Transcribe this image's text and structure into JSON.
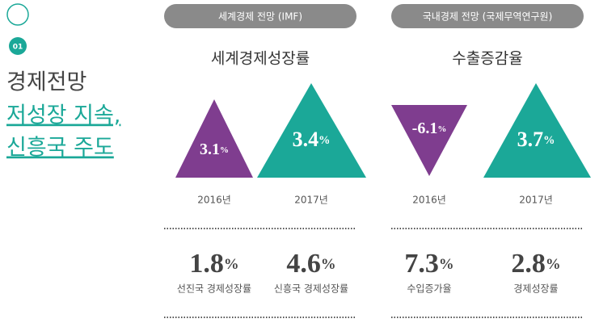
{
  "left": {
    "number": "01",
    "title": "경제전망",
    "highlight": [
      "저성장 지속,",
      "신흥국 주도"
    ]
  },
  "panels": [
    {
      "header": "세계경제 전망 (IMF)",
      "subtitle": "세계경제성장률",
      "forecasts": [
        {
          "value": "3.1",
          "unit": "%",
          "year": "2016년"
        },
        {
          "value": "3.4",
          "unit": "%",
          "year": "2017년"
        }
      ],
      "stats": [
        {
          "value": "1.8",
          "unit": "%",
          "label": "선진국 경제성장률"
        },
        {
          "value": "4.6",
          "unit": "%",
          "label": "신흥국 경제성장률"
        }
      ]
    },
    {
      "header": "국내경제 전망 (국제무역연구원)",
      "subtitle": "수출증감율",
      "forecasts": [
        {
          "value": "-6.1",
          "unit": "%",
          "year": "2016년"
        },
        {
          "value": "3.7",
          "unit": "%",
          "year": "2017년"
        }
      ],
      "stats": [
        {
          "value": "7.3",
          "unit": "%",
          "label": "수입증가율"
        },
        {
          "value": "2.8",
          "unit": "%",
          "label": "경제성장률"
        }
      ]
    }
  ]
}
